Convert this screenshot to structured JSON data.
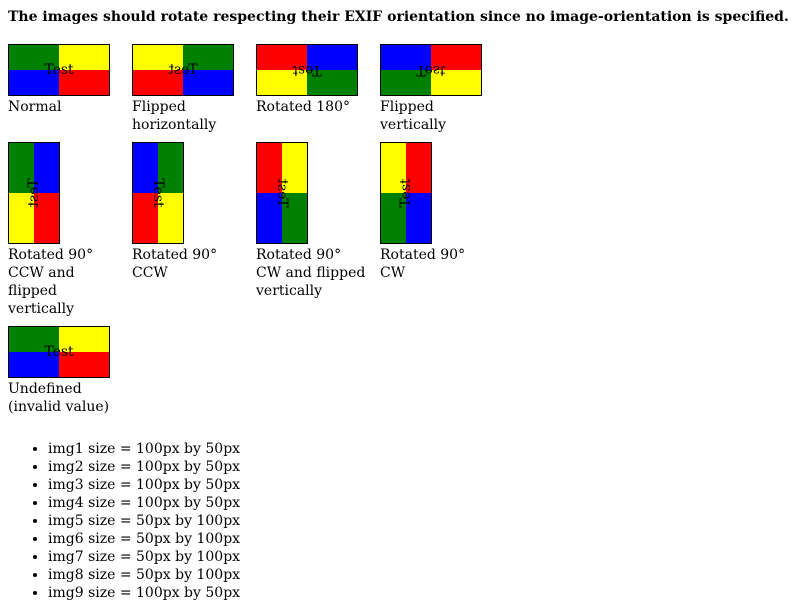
{
  "heading": "The images should rotate respecting their EXIF orientation since no image-orientation is specified.",
  "colors": {
    "green": "#008000",
    "yellow": "#ffff00",
    "blue": "#0000ff",
    "red": "#ff0000"
  },
  "image_label": "Test",
  "figures": [
    {
      "caption": "Normal",
      "shape": "wide",
      "quads": [
        "green",
        "yellow",
        "blue",
        "red"
      ],
      "text_transform": "rotate(0deg)"
    },
    {
      "caption": "Flipped horizontally",
      "shape": "wide",
      "quads": [
        "yellow",
        "green",
        "red",
        "blue"
      ],
      "text_transform": "scaleX(-1)"
    },
    {
      "caption": "Rotated 180°",
      "shape": "wide",
      "quads": [
        "red",
        "blue",
        "yellow",
        "green"
      ],
      "text_transform": "rotate(180deg)"
    },
    {
      "caption": "Flipped vertically",
      "shape": "wide",
      "quads": [
        "blue",
        "red",
        "green",
        "yellow"
      ],
      "text_transform": "scaleY(-1)"
    },
    {
      "caption": "Rotated 90° CCW and flipped vertically",
      "shape": "tall",
      "quads": [
        "green",
        "blue",
        "yellow",
        "red"
      ],
      "text_transform": "rotate(90deg) scaleY(-1)"
    },
    {
      "caption": "Rotated 90° CCW",
      "shape": "tall",
      "quads": [
        "blue",
        "green",
        "red",
        "yellow"
      ],
      "text_transform": "rotate(90deg)"
    },
    {
      "caption": "Rotated 90° CW and flipped vertically",
      "shape": "tall",
      "quads": [
        "red",
        "yellow",
        "blue",
        "green"
      ],
      "text_transform": "rotate(90deg) scaleX(-1)"
    },
    {
      "caption": "Rotated 90° CW",
      "shape": "tall",
      "quads": [
        "yellow",
        "red",
        "green",
        "blue"
      ],
      "text_transform": "rotate(-90deg)"
    },
    {
      "caption": "Undefined (invalid value)",
      "shape": "wide",
      "quads": [
        "green",
        "yellow",
        "blue",
        "red"
      ],
      "text_transform": "rotate(0deg)"
    }
  ],
  "sizes": [
    "img1 size = 100px by 50px",
    "img2 size = 100px by 50px",
    "img3 size = 100px by 50px",
    "img4 size = 100px by 50px",
    "img5 size = 50px by 100px",
    "img6 size = 50px by 100px",
    "img7 size = 50px by 100px",
    "img8 size = 50px by 100px",
    "img9 size = 100px by 50px"
  ]
}
